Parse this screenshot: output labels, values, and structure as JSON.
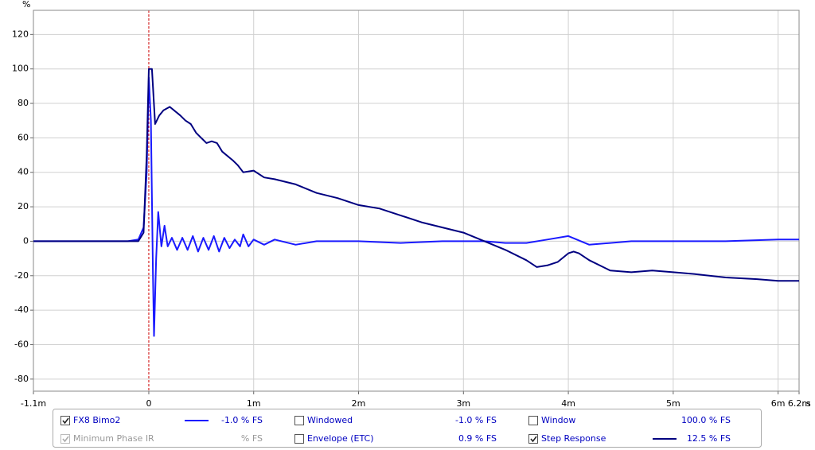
{
  "chart_data": {
    "type": "line",
    "y_label": "%",
    "x_label": "s",
    "xlim": [
      -1.1,
      6.2
    ],
    "xticks": [
      {
        "value": -1.1,
        "label": "-1.1m"
      },
      0,
      {
        "value": 1,
        "label": "1m"
      },
      {
        "value": 2,
        "label": "2m"
      },
      {
        "value": 3,
        "label": "3m"
      },
      {
        "value": 4,
        "label": "4m"
      },
      {
        "value": 5,
        "label": "5m"
      },
      {
        "value": 6,
        "label": "6m"
      },
      {
        "value": 6.2,
        "label": "6.2m"
      }
    ],
    "ylim": [
      -87,
      134
    ],
    "yticks": [
      -80,
      -60,
      -40,
      -20,
      0,
      20,
      40,
      60,
      80,
      100,
      120
    ],
    "grid": true,
    "zero_line_color": "#cc0000",
    "series": [
      {
        "name": "FX8 Bimo2",
        "color": "#1a1aff",
        "checked": true,
        "readout": "-1.0 % FS",
        "x": [
          -1.1,
          -0.2,
          -0.1,
          -0.05,
          -0.02,
          0,
          0.02,
          0.04,
          0.05,
          0.07,
          0.09,
          0.12,
          0.15,
          0.18,
          0.22,
          0.27,
          0.32,
          0.37,
          0.42,
          0.47,
          0.52,
          0.57,
          0.62,
          0.67,
          0.72,
          0.77,
          0.82,
          0.87,
          0.9,
          0.95,
          1.0,
          1.1,
          1.2,
          1.4,
          1.6,
          2.0,
          2.4,
          2.8,
          3.2,
          3.4,
          3.6,
          3.8,
          4.0,
          4.2,
          4.4,
          4.6,
          5.0,
          5.5,
          6.0,
          6.2
        ],
        "values": [
          0,
          0,
          1,
          8,
          40,
          95,
          70,
          -20,
          -55,
          -10,
          17,
          -3,
          9,
          -3,
          2,
          -5,
          2,
          -5,
          3,
          -6,
          2,
          -5,
          3,
          -6,
          2,
          -4,
          1,
          -3,
          4,
          -3,
          1,
          -2,
          1,
          -2,
          0,
          0,
          -1,
          0,
          0,
          -1,
          -1,
          1,
          3,
          -2,
          -1,
          0,
          0,
          0,
          1,
          1
        ]
      },
      {
        "name": "Step Response",
        "color": "#000080",
        "checked": true,
        "readout": "12.5 % FS",
        "x": [
          -1.1,
          -0.1,
          -0.05,
          -0.02,
          0,
          0.03,
          0.06,
          0.1,
          0.14,
          0.2,
          0.3,
          0.35,
          0.4,
          0.45,
          0.5,
          0.55,
          0.6,
          0.65,
          0.7,
          0.8,
          0.85,
          0.9,
          1.0,
          1.1,
          1.2,
          1.4,
          1.6,
          1.8,
          2.0,
          2.2,
          2.4,
          2.6,
          2.8,
          3.0,
          3.2,
          3.4,
          3.6,
          3.7,
          3.8,
          3.9,
          4.0,
          4.05,
          4.1,
          4.2,
          4.4,
          4.6,
          4.8,
          5.0,
          5.2,
          5.5,
          5.8,
          6.0,
          6.2
        ],
        "values": [
          0,
          0,
          5,
          50,
          100,
          100,
          68,
          73,
          76,
          78,
          73,
          70,
          68,
          63,
          60,
          57,
          58,
          57,
          52,
          47,
          44,
          40,
          41,
          37,
          36,
          33,
          28,
          25,
          21,
          19,
          15,
          11,
          8,
          5,
          0,
          -5,
          -11,
          -15,
          -14,
          -12,
          -7,
          -6,
          -7,
          -11,
          -17,
          -18,
          -17,
          -18,
          -19,
          -21,
          -22,
          -23,
          -23
        ]
      }
    ]
  },
  "controls": [
    {
      "label": "Windowed",
      "checked": false,
      "readout": "-1.0 % FS"
    },
    {
      "label": "Window",
      "checked": false,
      "readout": "100.0 % FS"
    },
    {
      "label": "Minimum Phase IR",
      "checked": true,
      "disabled": true,
      "readout": "% FS"
    },
    {
      "label": "Envelope (ETC)",
      "checked": false,
      "readout": "0.9 % FS"
    }
  ]
}
